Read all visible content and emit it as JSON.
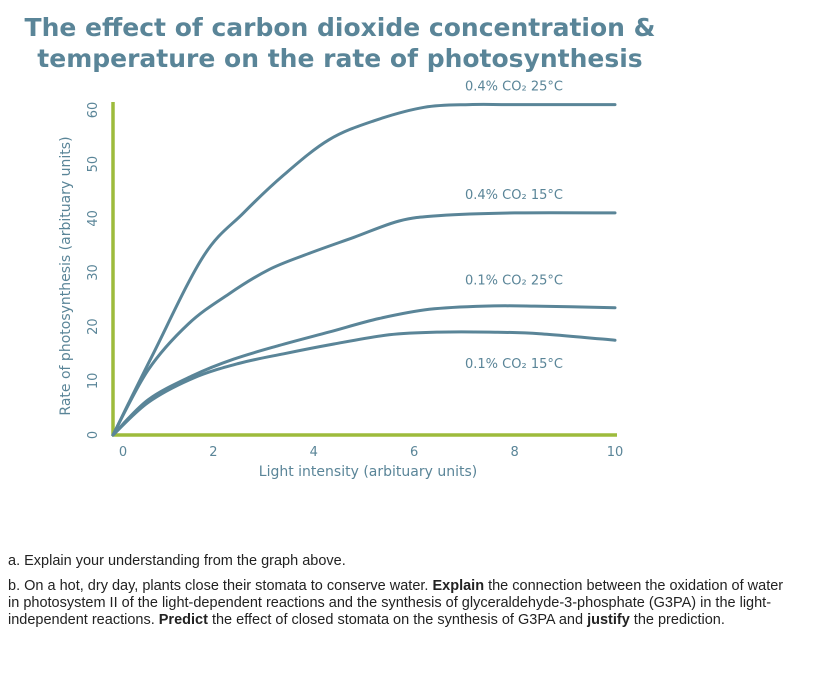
{
  "chart_data": {
    "type": "line",
    "title_lines": [
      "The effect of carbon dioxide concentration &",
      "temperature on the rate of photosynthesis"
    ],
    "xlabel": "Light intensity (arbituary units)",
    "ylabel": "Rate of photosynthesis (arbituary units)",
    "xlim": [
      0,
      10
    ],
    "ylim": [
      0,
      60
    ],
    "xticks": [
      0,
      2,
      4,
      6,
      8,
      10
    ],
    "yticks": [
      0,
      10,
      20,
      30,
      40,
      50,
      60
    ],
    "grid": false,
    "axis_color": "#9dbb3c",
    "line_color": "#5a8598",
    "series": [
      {
        "name": "0.4% CO₂  25°C",
        "x": [
          0,
          0.8,
          1.8,
          2.6,
          3.4,
          4.3,
          5.2,
          6.2,
          7.1,
          8.0,
          10.0
        ],
        "y": [
          0,
          15,
          33,
          41,
          48,
          54.5,
          58,
          60.5,
          61,
          61,
          61
        ]
      },
      {
        "name": "0.4% CO₂  15°C",
        "x": [
          0,
          0.7,
          1.5,
          2.3,
          3.1,
          3.9,
          4.8,
          5.7,
          6.5,
          8.0,
          10.0
        ],
        "y": [
          0,
          12,
          20.5,
          26,
          30.5,
          33.5,
          36.5,
          39.5,
          40.5,
          41,
          41
        ]
      },
      {
        "name": "0.1% CO₂  25°C",
        "x": [
          0,
          0.7,
          1.6,
          2.4,
          3.3,
          4.3,
          5.3,
          6.3,
          7.4,
          8.4,
          10.0
        ],
        "y": [
          0,
          6.5,
          11,
          14,
          16.5,
          19,
          21.5,
          23.2,
          23.8,
          23.8,
          23.5
        ]
      },
      {
        "name": "0.1% CO₂  15°C",
        "x": [
          0,
          0.7,
          1.6,
          2.5,
          3.4,
          4.4,
          5.5,
          6.5,
          7.5,
          8.5,
          10.0
        ],
        "y": [
          0,
          6,
          10.5,
          13.2,
          15,
          16.8,
          18.5,
          19,
          19,
          18.7,
          17.5
        ]
      }
    ]
  },
  "questions": {
    "a": "a. Explain your understanding from the graph above.",
    "b_1": "b. On a hot, dry day, plants close their stomata to conserve water.",
    "b_2": "Explain",
    "b_3": "the connection between the oxidation of water in photosystem II of the light-dependent reactions and the synthesis of glyceraldehyde-3-phosphate (G3PA) in the light-independent reactions.",
    "b_4": "Predict",
    "b_5": "the effect of closed stomata on the synthesis of G3PA and",
    "b_6": "justify",
    "b_7": "the prediction."
  }
}
